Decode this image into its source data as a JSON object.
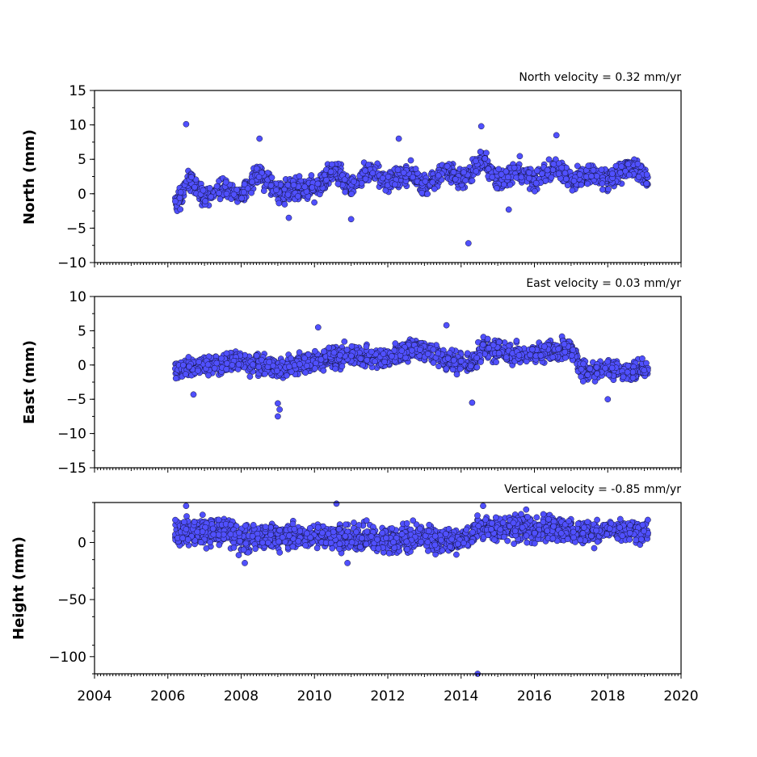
{
  "chart_data": [
    {
      "type": "scatter",
      "annotation": "North velocity = 0.32 mm/yr",
      "ylabel": "North (mm)",
      "ylim": [
        -10,
        15
      ],
      "yticks": [
        15,
        10,
        5,
        0,
        -5,
        -10
      ],
      "ytick_labels": [
        "15",
        "10",
        "5",
        "0",
        "−5",
        "−10"
      ],
      "xlim": [
        2004,
        2020
      ],
      "point_color": "#5050ff",
      "data_span": [
        2006.2,
        2019.1
      ],
      "trend_points": [
        {
          "x": 2006.3,
          "y": -1
        },
        {
          "x": 2006.6,
          "y": 2
        },
        {
          "x": 2007.0,
          "y": -0.5
        },
        {
          "x": 2007.6,
          "y": 1
        },
        {
          "x": 2008.0,
          "y": -0.5
        },
        {
          "x": 2008.5,
          "y": 3
        },
        {
          "x": 2009.0,
          "y": 0
        },
        {
          "x": 2009.6,
          "y": 1
        },
        {
          "x": 2010.0,
          "y": 0.5
        },
        {
          "x": 2010.5,
          "y": 3.5
        },
        {
          "x": 2011.0,
          "y": 1
        },
        {
          "x": 2011.5,
          "y": 3.5
        },
        {
          "x": 2012.0,
          "y": 1.5
        },
        {
          "x": 2012.6,
          "y": 3
        },
        {
          "x": 2013.0,
          "y": 1
        },
        {
          "x": 2013.6,
          "y": 3.5
        },
        {
          "x": 2014.0,
          "y": 2
        },
        {
          "x": 2014.6,
          "y": 5
        },
        {
          "x": 2015.0,
          "y": 1.5
        },
        {
          "x": 2015.6,
          "y": 3.5
        },
        {
          "x": 2016.0,
          "y": 2
        },
        {
          "x": 2016.6,
          "y": 4
        },
        {
          "x": 2017.0,
          "y": 2
        },
        {
          "x": 2017.6,
          "y": 3
        },
        {
          "x": 2018.0,
          "y": 2
        },
        {
          "x": 2018.6,
          "y": 4
        },
        {
          "x": 2019.1,
          "y": 2
        }
      ],
      "outliers": [
        {
          "x": 2006.5,
          "y": 10.1
        },
        {
          "x": 2008.5,
          "y": 8
        },
        {
          "x": 2014.2,
          "y": -7.2
        },
        {
          "x": 2014.55,
          "y": 9.8
        },
        {
          "x": 2016.6,
          "y": 8.5
        },
        {
          "x": 2011.0,
          "y": -3.7
        },
        {
          "x": 2009.3,
          "y": -3.5
        },
        {
          "x": 2012.3,
          "y": 8
        },
        {
          "x": 2015.3,
          "y": -2.3
        }
      ]
    },
    {
      "type": "scatter",
      "annotation": "East velocity = 0.03 mm/yr",
      "ylabel": "East (mm)",
      "ylim": [
        -15,
        10
      ],
      "yticks": [
        10,
        5,
        0,
        -5,
        -10,
        -15
      ],
      "ytick_labels": [
        "10",
        "5",
        "0",
        "−5",
        "−10",
        "−15"
      ],
      "xlim": [
        2004,
        2020
      ],
      "point_color": "#5050ff",
      "data_span": [
        2006.2,
        2019.1
      ],
      "trend_points": [
        {
          "x": 2006.3,
          "y": -0.5
        },
        {
          "x": 2007.0,
          "y": 0
        },
        {
          "x": 2008.0,
          "y": 0.5
        },
        {
          "x": 2009.0,
          "y": -0.5
        },
        {
          "x": 2010.0,
          "y": 0.5
        },
        {
          "x": 2011.0,
          "y": 1.5
        },
        {
          "x": 2012.0,
          "y": 1
        },
        {
          "x": 2012.8,
          "y": 2.5
        },
        {
          "x": 2013.5,
          "y": 1
        },
        {
          "x": 2014.3,
          "y": 0
        },
        {
          "x": 2014.6,
          "y": 2.5
        },
        {
          "x": 2015.5,
          "y": 1.5
        },
        {
          "x": 2016.5,
          "y": 2
        },
        {
          "x": 2017.0,
          "y": 2.5
        },
        {
          "x": 2017.3,
          "y": -1
        },
        {
          "x": 2018.0,
          "y": -0.5
        },
        {
          "x": 2018.6,
          "y": -1
        },
        {
          "x": 2019.1,
          "y": -0.5
        }
      ],
      "outliers": [
        {
          "x": 2009.0,
          "y": -7.5
        },
        {
          "x": 2009.05,
          "y": -6.5
        },
        {
          "x": 2009.0,
          "y": -5.6
        },
        {
          "x": 2013.6,
          "y": 5.8
        },
        {
          "x": 2010.1,
          "y": 5.5
        },
        {
          "x": 2014.3,
          "y": -5.5
        },
        {
          "x": 2018.0,
          "y": -5
        },
        {
          "x": 2006.7,
          "y": -4.3
        }
      ]
    },
    {
      "type": "scatter",
      "annotation": "Vertical velocity = -0.85 mm/yr",
      "ylabel": "Height (mm)",
      "ylim": [
        -115,
        35
      ],
      "yticks": [
        0,
        -50,
        -100
      ],
      "ytick_labels": [
        "0",
        "−50",
        "−100"
      ],
      "xlim": [
        2004,
        2020
      ],
      "xticks": [
        2004,
        2006,
        2008,
        2010,
        2012,
        2014,
        2016,
        2018,
        2020
      ],
      "xtick_labels": [
        "2004",
        "2006",
        "2008",
        "2010",
        "2012",
        "2014",
        "2016",
        "2018",
        "2020"
      ],
      "point_color": "#5050ff",
      "data_span": [
        2006.2,
        2019.1
      ],
      "trend_points": [
        {
          "x": 2006.3,
          "y": 10
        },
        {
          "x": 2007.0,
          "y": 8
        },
        {
          "x": 2007.5,
          "y": 12
        },
        {
          "x": 2008.0,
          "y": 2
        },
        {
          "x": 2009.0,
          "y": 5
        },
        {
          "x": 2010.0,
          "y": 6
        },
        {
          "x": 2011.0,
          "y": 4
        },
        {
          "x": 2012.0,
          "y": 3
        },
        {
          "x": 2013.0,
          "y": 5
        },
        {
          "x": 2014.0,
          "y": 0
        },
        {
          "x": 2014.6,
          "y": 15
        },
        {
          "x": 2015.5,
          "y": 12
        },
        {
          "x": 2016.5,
          "y": 12
        },
        {
          "x": 2017.5,
          "y": 8
        },
        {
          "x": 2018.5,
          "y": 10
        },
        {
          "x": 2019.1,
          "y": 8
        }
      ],
      "outliers": [
        {
          "x": 2006.5,
          "y": 32
        },
        {
          "x": 2010.6,
          "y": 34
        },
        {
          "x": 2014.45,
          "y": -115
        },
        {
          "x": 2008.1,
          "y": -18
        },
        {
          "x": 2010.9,
          "y": -18
        },
        {
          "x": 2014.6,
          "y": 32
        }
      ]
    }
  ]
}
